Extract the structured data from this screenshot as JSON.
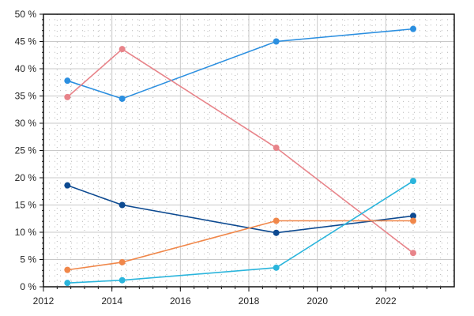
{
  "chart_data": {
    "type": "line",
    "title": "",
    "xlabel": "",
    "ylabel": "",
    "xlim": [
      2012,
      2024
    ],
    "ylim": [
      0,
      50
    ],
    "x_ticks": [
      2012,
      2014,
      2016,
      2018,
      2020,
      2022
    ],
    "x_tick_labels": [
      "2012",
      "2014",
      "2016",
      "2018",
      "2020",
      "2022"
    ],
    "y_ticks": [
      0,
      5,
      10,
      15,
      20,
      25,
      30,
      35,
      40,
      45,
      50
    ],
    "y_tick_labels": [
      "0 %",
      "5 %",
      "10 %",
      "15 %",
      "20 %",
      "25 %",
      "30 %",
      "35 %",
      "40 %",
      "45 %",
      "50 %"
    ],
    "grid": true,
    "legend": "none",
    "series": [
      {
        "color": "#2b8fe0",
        "x": [
          2012.7,
          2014.3,
          2018.8,
          2022.8
        ],
        "y": [
          37.8,
          34.5,
          45.0,
          47.3
        ]
      },
      {
        "color": "#e8848a",
        "x": [
          2012.7,
          2014.3,
          2018.8,
          2022.8
        ],
        "y": [
          34.8,
          43.6,
          25.5,
          6.2
        ]
      },
      {
        "color": "#0d4a91",
        "x": [
          2012.7,
          2014.3,
          2018.8,
          2022.8
        ],
        "y": [
          18.6,
          15.0,
          9.9,
          13.0
        ]
      },
      {
        "color": "#f0874a",
        "x": [
          2012.7,
          2014.3,
          2018.8,
          2022.8
        ],
        "y": [
          3.1,
          4.5,
          12.1,
          12.1
        ]
      },
      {
        "color": "#2bb5dc",
        "x": [
          2012.7,
          2014.3,
          2018.8,
          2022.8
        ],
        "y": [
          0.7,
          1.2,
          3.5,
          19.4
        ]
      }
    ]
  }
}
